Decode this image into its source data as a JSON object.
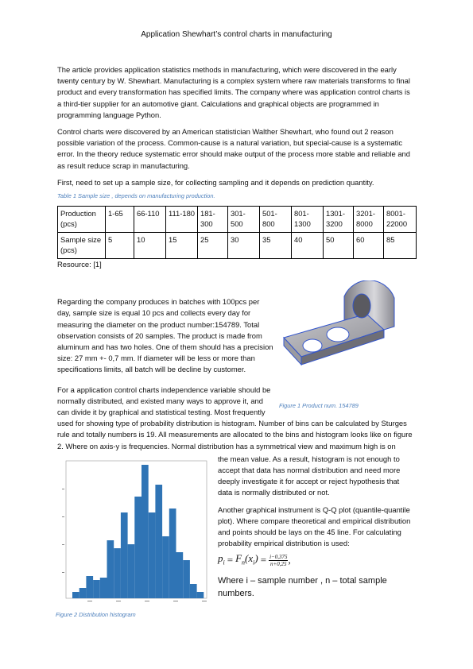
{
  "header": {
    "title": "Application Shewhart’s control charts in manufacturing"
  },
  "paragraphs": [
    "The article provides application statistics methods in manufacturing, which were discovered in the early twenty century by W. Shewhart. Manufacturing is a complex system where raw materials transforms to final product and every transformation has specified limits. The company where was application control charts is a third-tier supplier for an automotive giant.  Calculations and graphical objects are programmed in programming language Python.",
    "Control charts were discovered by an American statistician Walther Shewhart, who found out 2 reason possible variation of the process. Common-cause is a natural variation, but special-cause is a systematic error. In the theory reduce systematic error should make output of the process more stable and reliable and as result reduce scrap in manufacturing.",
    "First, need to set up a sample size, for collecting sampling and it depends on prediction quantity.",
    "Regarding the company produces in batches with 100pcs per day, sample size is equal 10 pcs and collects every day for measuring the diameter on the product number:154789. Total observation consists of 20 samples. The product is made from aluminum and has two holes. One of them should has a precision size: 27 mm +- 0,7 mm. If diameter will be less or more than specifications limits, all batch will be decline by customer.",
    "For a application control charts independence variable should be normally distributed, and existed many ways to approve it, and can divide it by graphical and statistical testing.  Most frequently used for showing type of probability distribution is histogram. Number of bins can be calculated by Sturges rule and totally numbers is 19. All measurements are allocated to the bins and histogram looks like on figure 2. Where on axis-y is frequencies. Normal distribution has a symmetrical view and maximum high is on",
    "the mean value. As a result, histogram is not enough to accept that data has normal distribution and need more deeply investigate it for accept or reject hypothesis that data is normally distributed or not.",
    "Another graphical instrument is Q-Q plot (quantile-quantile plot). Where compare theoretical and empirical distribution and points should be lays on the 45 line. For calculating probability empirical distribution is used:",
    "Where i – sample number , n – total sample numbers."
  ],
  "table": {
    "caption": "Table 1 Sample size , depends on manufacturing production.",
    "rows": [
      [
        "Production (pcs)",
        "1-65",
        "66-110",
        "111-180",
        "181-300",
        "301-500",
        "501-800",
        "801-1300",
        "1301-3200",
        "3201-8000",
        "8001-22000"
      ],
      [
        "Sample size (pcs)",
        5,
        10,
        15,
        25,
        30,
        35,
        40,
        50,
        60,
        85
      ]
    ],
    "source": "Resource: [1]"
  },
  "formula": {
    "lhs": "p",
    "lhs_sub": "i",
    "eq": "=",
    "fn": "F",
    "fn_sub": "n",
    "arg": "(x",
    "arg_sub": "i",
    "close": ")",
    "numerator": "i−0,375",
    "denominator": "n+0,25",
    "trail": ","
  },
  "figures": [
    {
      "caption": "Figure 1  Product num. 154789"
    },
    {
      "caption": "Figure 2 Distribution histogram"
    }
  ]
}
